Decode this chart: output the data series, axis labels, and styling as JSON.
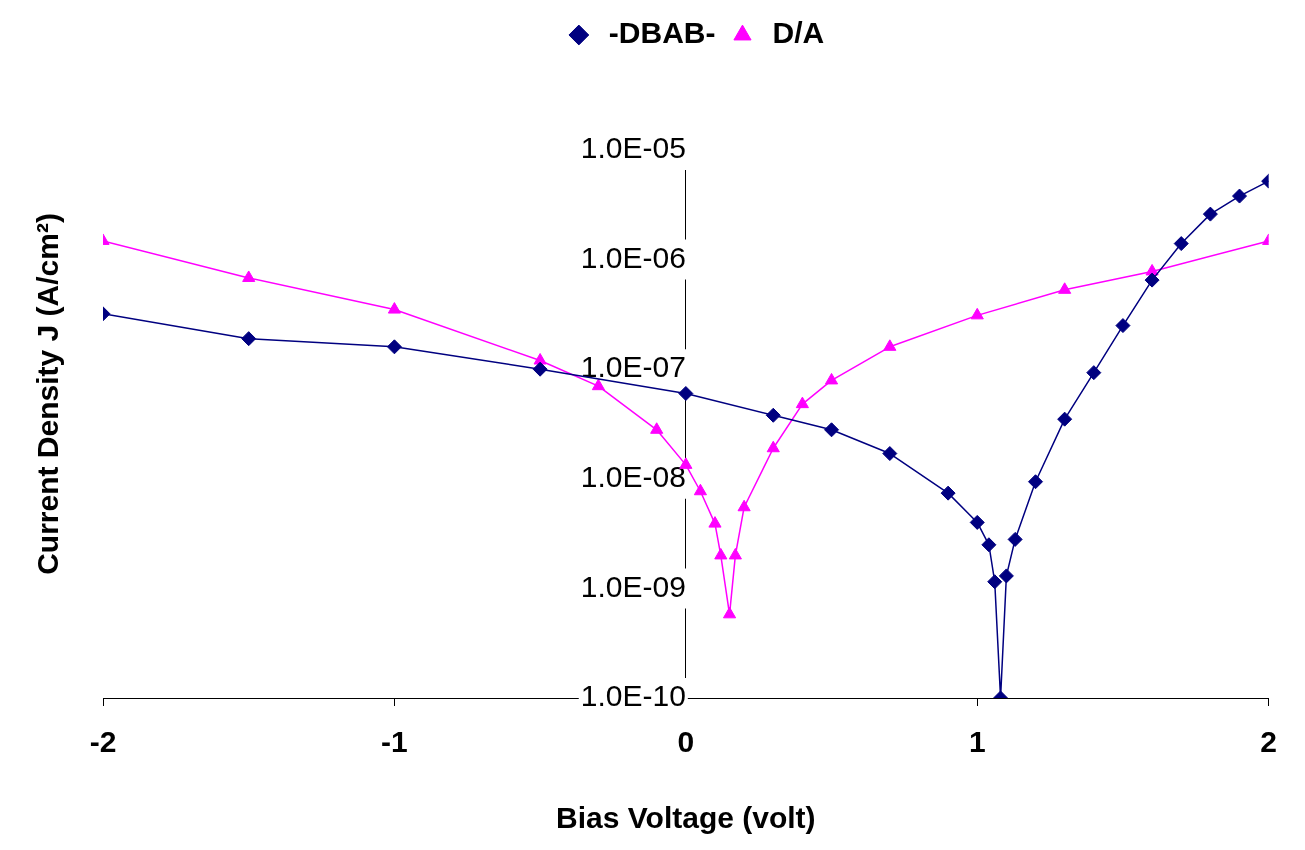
{
  "chart_data": {
    "type": "line",
    "xlabel": "Bias Voltage (volt)",
    "ylabel": "Current Density J (A/cm²)",
    "log": "y",
    "grid": false,
    "legend": "top",
    "xlim": [
      -2,
      2
    ],
    "xticks": [
      -2,
      -1,
      0,
      1,
      2
    ],
    "ylim": [
      1e-10,
      1e-05
    ],
    "yticks": [
      {
        "value": 1e-10,
        "label": "1.0E-10"
      },
      {
        "value": 1e-09,
        "label": "1.0E-09"
      },
      {
        "value": 1e-08,
        "label": "1.0E-08"
      },
      {
        "value": 1e-07,
        "label": "1.0E-07"
      },
      {
        "value": 1e-06,
        "label": "1.0E-06"
      },
      {
        "value": 1e-05,
        "label": "1.0E-05"
      }
    ],
    "series": [
      {
        "name": "-DBAB-",
        "color": "#000080",
        "marker": "diamond",
        "x": [
          -2,
          -1.5,
          -1,
          -0.5,
          0,
          0.3,
          0.5,
          0.7,
          0.9,
          1,
          1.04,
          1.06,
          1.08,
          1.1,
          1.13,
          1.2,
          1.3,
          1.4,
          1.5,
          1.6,
          1.7,
          1.8,
          1.9,
          2
        ],
        "values": [
          3.2e-07,
          1.9e-07,
          1.6e-07,
          1e-07,
          6e-08,
          3.8e-08,
          2.8e-08,
          1.7e-08,
          7.4e-09,
          4e-09,
          2.5e-09,
          1.15e-09,
          1e-10,
          1.3e-09,
          2.8e-09,
          9.4e-09,
          3.5e-08,
          9.3e-08,
          2.5e-07,
          6.5e-07,
          1.4e-06,
          2.6e-06,
          3.8e-06,
          5.2e-06
        ]
      },
      {
        "name": "D/A",
        "color": "#ff00ff",
        "marker": "triangle",
        "x": [
          -2,
          -1.5,
          -1,
          -0.5,
          -0.3,
          -0.1,
          0,
          0.05,
          0.1,
          0.12,
          0.15,
          0.17,
          0.2,
          0.3,
          0.4,
          0.5,
          0.7,
          1,
          1.3,
          1.6,
          2
        ],
        "values": [
          1.48e-06,
          6.8e-07,
          3.5e-07,
          1.2e-07,
          7e-08,
          2.8e-08,
          1.34e-08,
          7.7e-09,
          3.9e-09,
          2e-09,
          5.8e-10,
          2e-09,
          5.5e-09,
          1.9e-08,
          4.8e-08,
          7.9e-08,
          1.6e-07,
          3.1e-07,
          5.3e-07,
          7.8e-07,
          1.48e-06
        ]
      }
    ]
  }
}
